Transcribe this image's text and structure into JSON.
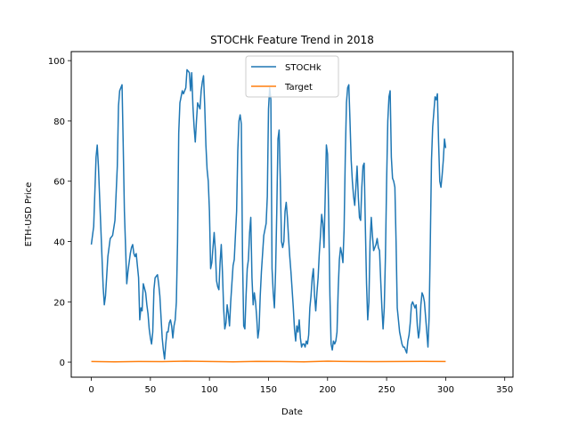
{
  "chart_data": {
    "type": "line",
    "title": "STOCHk Feature Trend in 2018",
    "xlabel": "Date",
    "ylabel": "ETH-USD Price",
    "xlim": [
      -17,
      357
    ],
    "ylim": [
      -5,
      103
    ],
    "xticks": [
      0,
      50,
      100,
      150,
      200,
      250,
      300,
      350
    ],
    "yticks": [
      0,
      20,
      40,
      60,
      80,
      100
    ],
    "grid": false,
    "legend": "top-center",
    "series": [
      {
        "name": "STOCHk",
        "color": "#1f77b4",
        "points": [
          [
            0,
            39
          ],
          [
            2,
            45
          ],
          [
            4,
            68
          ],
          [
            5,
            72
          ],
          [
            6,
            65
          ],
          [
            8,
            45
          ],
          [
            10,
            25
          ],
          [
            11,
            19
          ],
          [
            12,
            22
          ],
          [
            14,
            35
          ],
          [
            16,
            41
          ],
          [
            18,
            42
          ],
          [
            20,
            47
          ],
          [
            22,
            65
          ],
          [
            23,
            85
          ],
          [
            24,
            90
          ],
          [
            26,
            92
          ],
          [
            27,
            72
          ],
          [
            28,
            50
          ],
          [
            30,
            26
          ],
          [
            31,
            30
          ],
          [
            33,
            36
          ],
          [
            34,
            38
          ],
          [
            35,
            39
          ],
          [
            36,
            36
          ],
          [
            37,
            35
          ],
          [
            38,
            36
          ],
          [
            40,
            28
          ],
          [
            41,
            14
          ],
          [
            42,
            18
          ],
          [
            43,
            17
          ],
          [
            44,
            26
          ],
          [
            46,
            23
          ],
          [
            47,
            19
          ],
          [
            48,
            16
          ],
          [
            49,
            11
          ],
          [
            50,
            8
          ],
          [
            51,
            6
          ],
          [
            52,
            10
          ],
          [
            53,
            24
          ],
          [
            54,
            28
          ],
          [
            56,
            29
          ],
          [
            57,
            26
          ],
          [
            58,
            22
          ],
          [
            59,
            15
          ],
          [
            60,
            8
          ],
          [
            61,
            4
          ],
          [
            62,
            1
          ],
          [
            63,
            6
          ],
          [
            64,
            10
          ],
          [
            65,
            10
          ],
          [
            66,
            13
          ],
          [
            67,
            14
          ],
          [
            68,
            12
          ],
          [
            69,
            8
          ],
          [
            70,
            12
          ],
          [
            71,
            14
          ],
          [
            72,
            20
          ],
          [
            73,
            40
          ],
          [
            74,
            76
          ],
          [
            75,
            86
          ],
          [
            76,
            88
          ],
          [
            77,
            90
          ],
          [
            78,
            89
          ],
          [
            80,
            91
          ],
          [
            81,
            97
          ],
          [
            83,
            96
          ],
          [
            84,
            90
          ],
          [
            85,
            96
          ],
          [
            86,
            85
          ],
          [
            87,
            78
          ],
          [
            88,
            73
          ],
          [
            89,
            80
          ],
          [
            90,
            86
          ],
          [
            91,
            85
          ],
          [
            92,
            84
          ],
          [
            93,
            90
          ],
          [
            94,
            93
          ],
          [
            95,
            95
          ],
          [
            96,
            85
          ],
          [
            97,
            72
          ],
          [
            98,
            64
          ],
          [
            99,
            60
          ],
          [
            100,
            50
          ],
          [
            101,
            31
          ],
          [
            102,
            33
          ],
          [
            103,
            38
          ],
          [
            104,
            43
          ],
          [
            105,
            37
          ],
          [
            106,
            27
          ],
          [
            107,
            25
          ],
          [
            108,
            24
          ],
          [
            109,
            33
          ],
          [
            110,
            39
          ],
          [
            111,
            30
          ],
          [
            112,
            18
          ],
          [
            113,
            11
          ],
          [
            114,
            13
          ],
          [
            115,
            19
          ],
          [
            116,
            16
          ],
          [
            117,
            12
          ],
          [
            118,
            20
          ],
          [
            119,
            26
          ],
          [
            120,
            32
          ],
          [
            121,
            34
          ],
          [
            122,
            42
          ],
          [
            123,
            50
          ],
          [
            124,
            70
          ],
          [
            125,
            80
          ],
          [
            126,
            82
          ],
          [
            127,
            79
          ],
          [
            128,
            35
          ],
          [
            129,
            12
          ],
          [
            130,
            11
          ],
          [
            131,
            22
          ],
          [
            132,
            31
          ],
          [
            133,
            34
          ],
          [
            134,
            43
          ],
          [
            135,
            48
          ],
          [
            136,
            28
          ],
          [
            137,
            19
          ],
          [
            138,
            23
          ],
          [
            139,
            20
          ],
          [
            140,
            15
          ],
          [
            141,
            8
          ],
          [
            142,
            11
          ],
          [
            143,
            22
          ],
          [
            144,
            30
          ],
          [
            146,
            42
          ],
          [
            148,
            46
          ],
          [
            149,
            55
          ],
          [
            150,
            84
          ],
          [
            151,
            91
          ],
          [
            152,
            87
          ],
          [
            153,
            31
          ],
          [
            154,
            23
          ],
          [
            155,
            18
          ],
          [
            156,
            30
          ],
          [
            157,
            50
          ],
          [
            158,
            74
          ],
          [
            159,
            77
          ],
          [
            160,
            60
          ],
          [
            161,
            40
          ],
          [
            162,
            38
          ],
          [
            163,
            40
          ],
          [
            164,
            50
          ],
          [
            165,
            53
          ],
          [
            166,
            48
          ],
          [
            167,
            41
          ],
          [
            168,
            35
          ],
          [
            169,
            30
          ],
          [
            170,
            24
          ],
          [
            171,
            18
          ],
          [
            172,
            11
          ],
          [
            173,
            7
          ],
          [
            174,
            12
          ],
          [
            175,
            10
          ],
          [
            176,
            14
          ],
          [
            177,
            8
          ],
          [
            178,
            5
          ],
          [
            179,
            6
          ],
          [
            180,
            6
          ],
          [
            181,
            5
          ],
          [
            182,
            7
          ],
          [
            183,
            6
          ],
          [
            184,
            9
          ],
          [
            185,
            18
          ],
          [
            186,
            22
          ],
          [
            187,
            28
          ],
          [
            188,
            31
          ],
          [
            189,
            22
          ],
          [
            190,
            17
          ],
          [
            191,
            23
          ],
          [
            192,
            28
          ],
          [
            193,
            36
          ],
          [
            194,
            42
          ],
          [
            195,
            49
          ],
          [
            196,
            46
          ],
          [
            197,
            38
          ],
          [
            198,
            55
          ],
          [
            199,
            72
          ],
          [
            200,
            69
          ],
          [
            201,
            48
          ],
          [
            202,
            22
          ],
          [
            203,
            6
          ],
          [
            204,
            4
          ],
          [
            205,
            7
          ],
          [
            206,
            6
          ],
          [
            207,
            7
          ],
          [
            208,
            10
          ],
          [
            209,
            24
          ],
          [
            210,
            34
          ],
          [
            211,
            38
          ],
          [
            212,
            36
          ],
          [
            213,
            33
          ],
          [
            214,
            44
          ],
          [
            215,
            68
          ],
          [
            216,
            86
          ],
          [
            217,
            91
          ],
          [
            218,
            92
          ],
          [
            219,
            80
          ],
          [
            220,
            67
          ],
          [
            221,
            60
          ],
          [
            222,
            55
          ],
          [
            223,
            52
          ],
          [
            224,
            58
          ],
          [
            225,
            65
          ],
          [
            226,
            55
          ],
          [
            227,
            48
          ],
          [
            228,
            47
          ],
          [
            229,
            58
          ],
          [
            230,
            65
          ],
          [
            231,
            66
          ],
          [
            232,
            45
          ],
          [
            233,
            26
          ],
          [
            234,
            14
          ],
          [
            235,
            20
          ],
          [
            236,
            40
          ],
          [
            237,
            48
          ],
          [
            238,
            42
          ],
          [
            239,
            37
          ],
          [
            240,
            38
          ],
          [
            241,
            39
          ],
          [
            242,
            41
          ],
          [
            243,
            38
          ],
          [
            244,
            37
          ],
          [
            245,
            27
          ],
          [
            246,
            18
          ],
          [
            247,
            11
          ],
          [
            248,
            18
          ],
          [
            249,
            35
          ],
          [
            250,
            60
          ],
          [
            251,
            80
          ],
          [
            252,
            88
          ],
          [
            253,
            90
          ],
          [
            254,
            68
          ],
          [
            255,
            61
          ],
          [
            256,
            60
          ],
          [
            257,
            58
          ],
          [
            258,
            40
          ],
          [
            259,
            18
          ],
          [
            260,
            14
          ],
          [
            261,
            10
          ],
          [
            262,
            8
          ],
          [
            263,
            6
          ],
          [
            264,
            5
          ],
          [
            265,
            5
          ],
          [
            266,
            4
          ],
          [
            267,
            3
          ],
          [
            268,
            7
          ],
          [
            269,
            9
          ],
          [
            270,
            13
          ],
          [
            271,
            19
          ],
          [
            272,
            20
          ],
          [
            273,
            19
          ],
          [
            274,
            18
          ],
          [
            275,
            19
          ],
          [
            276,
            12
          ],
          [
            277,
            8
          ],
          [
            278,
            11
          ],
          [
            279,
            19
          ],
          [
            280,
            23
          ],
          [
            281,
            22
          ],
          [
            282,
            20
          ],
          [
            283,
            15
          ],
          [
            284,
            10
          ],
          [
            285,
            5
          ],
          [
            286,
            15
          ],
          [
            287,
            40
          ],
          [
            288,
            67
          ],
          [
            289,
            78
          ],
          [
            290,
            83
          ],
          [
            291,
            88
          ],
          [
            292,
            87
          ],
          [
            293,
            89
          ],
          [
            294,
            73
          ],
          [
            295,
            60
          ],
          [
            296,
            58
          ],
          [
            297,
            62
          ],
          [
            298,
            67
          ],
          [
            299,
            74
          ],
          [
            300,
            71
          ]
        ]
      },
      {
        "name": "Target",
        "color": "#ff7f0e",
        "points": [
          [
            0,
            0.2
          ],
          [
            20,
            0.1
          ],
          [
            40,
            0.2
          ],
          [
            60,
            0.15
          ],
          [
            80,
            0.3
          ],
          [
            100,
            0.2
          ],
          [
            120,
            0.1
          ],
          [
            140,
            0.25
          ],
          [
            160,
            0.2
          ],
          [
            180,
            0.1
          ],
          [
            200,
            0.3
          ],
          [
            220,
            0.2
          ],
          [
            240,
            0.15
          ],
          [
            260,
            0.2
          ],
          [
            280,
            0.25
          ],
          [
            300,
            0.2
          ]
        ]
      }
    ]
  }
}
